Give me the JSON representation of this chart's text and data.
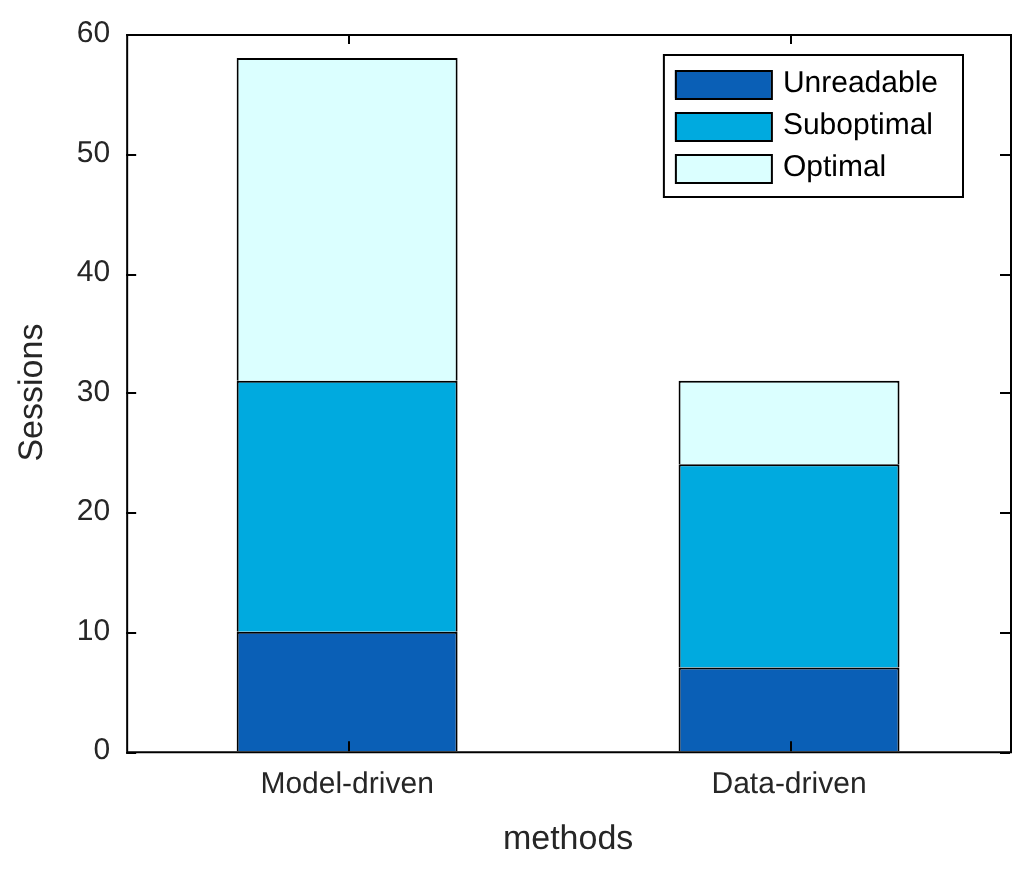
{
  "chart_data": {
    "type": "bar",
    "stacked": true,
    "xlabel": "methods",
    "ylabel": "Sessions",
    "categories": [
      "Model-driven",
      "Data-driven"
    ],
    "series": [
      {
        "name": "Unreadable",
        "color": "#0a5fb6",
        "values": [
          10,
          7
        ]
      },
      {
        "name": "Suboptimal",
        "color": "#00aadf",
        "values": [
          21,
          17
        ]
      },
      {
        "name": "Optimal",
        "color": "#dbffff",
        "values": [
          27,
          7
        ]
      }
    ],
    "ylim": [
      0,
      60
    ],
    "yticks": [
      0,
      10,
      20,
      30,
      40,
      50,
      60
    ],
    "grid": false,
    "legend": "top right"
  }
}
